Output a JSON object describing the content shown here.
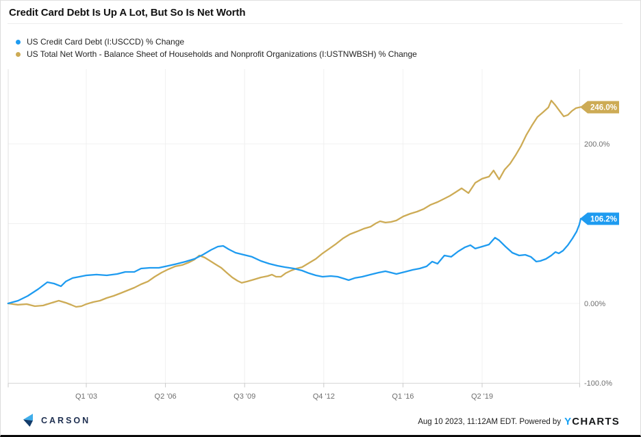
{
  "header": {
    "title": "Credit Card Debt Is Up A Lot, But So Is Net Worth"
  },
  "legend": [
    {
      "label": "US Credit Card Debt (I:USCCD) % Change",
      "color": "#1e9bf0"
    },
    {
      "label": "US Total Net Worth - Balance Sheet of Households and Nonprofit Organizations (I:USTNWBSH) % Change",
      "color": "#cdab55"
    }
  ],
  "footer": {
    "brand": "CARSON",
    "timestamp": "Aug 10 2023, 11:12AM EDT.",
    "powered_by": "Powered by",
    "ycharts_y": "Y",
    "ycharts_rest": "CHARTS"
  },
  "chart_data": {
    "type": "line",
    "title": "Credit Card Debt Is Up A Lot, But So Is Net Worth",
    "grid": true,
    "legend_position": "top-left",
    "x_axis": {
      "tick_labels": [
        "Q1 '03",
        "Q2 '06",
        "Q3 '09",
        "Q4 '12",
        "Q1 '16",
        "Q2 '19"
      ],
      "tick_years": [
        2003.0,
        2006.25,
        2009.5,
        2012.75,
        2016.0,
        2019.25
      ],
      "range_years": [
        1999.79,
        2023.3
      ]
    },
    "y_axis": {
      "unit": "%",
      "tick_labels": [
        "200.0%",
        "0.00%",
        "-100.0%"
      ],
      "tick_values": [
        200,
        0,
        -100
      ],
      "range": [
        -100,
        293
      ]
    },
    "series": [
      {
        "name": "US Credit Card Debt (I:USCCD) % Change",
        "color": "#1e9bf0",
        "end_label": "106.2%",
        "end_value": 106.2,
        "points": [
          [
            1999.79,
            0
          ],
          [
            2000.2,
            3.4
          ],
          [
            2000.6,
            9.4
          ],
          [
            2001.03,
            18
          ],
          [
            2001.4,
            26.6
          ],
          [
            2001.68,
            24.9
          ],
          [
            2001.96,
            21.5
          ],
          [
            2002.16,
            27.5
          ],
          [
            2002.44,
            31.8
          ],
          [
            2002.72,
            33.5
          ],
          [
            2003,
            35.2
          ],
          [
            2003.42,
            36.1
          ],
          [
            2003.84,
            35.2
          ],
          [
            2004.27,
            36.9
          ],
          [
            2004.6,
            39.5
          ],
          [
            2004.97,
            39.5
          ],
          [
            2005.25,
            43.8
          ],
          [
            2005.61,
            44.6
          ],
          [
            2005.98,
            44.6
          ],
          [
            2006.37,
            47.2
          ],
          [
            2006.74,
            49.8
          ],
          [
            2007.08,
            52.4
          ],
          [
            2007.44,
            55.8
          ],
          [
            2007.78,
            60.9
          ],
          [
            2008.12,
            67
          ],
          [
            2008.4,
            71.2
          ],
          [
            2008.62,
            72.1
          ],
          [
            2008.85,
            67.8
          ],
          [
            2009.13,
            63.5
          ],
          [
            2009.47,
            60.9
          ],
          [
            2009.8,
            58.4
          ],
          [
            2010.17,
            53.2
          ],
          [
            2010.51,
            49.8
          ],
          [
            2010.85,
            47.2
          ],
          [
            2011.15,
            45.5
          ],
          [
            2011.52,
            43.8
          ],
          [
            2011.86,
            41.2
          ],
          [
            2012.14,
            37.8
          ],
          [
            2012.42,
            35.2
          ],
          [
            2012.7,
            33.5
          ],
          [
            2013.04,
            34.3
          ],
          [
            2013.32,
            33.5
          ],
          [
            2013.6,
            30.9
          ],
          [
            2013.77,
            29.2
          ],
          [
            2014.02,
            31.8
          ],
          [
            2014.33,
            33.5
          ],
          [
            2014.67,
            36.1
          ],
          [
            2015,
            38.6
          ],
          [
            2015.28,
            40.3
          ],
          [
            2015.51,
            38.6
          ],
          [
            2015.73,
            36.9
          ],
          [
            2016.07,
            39.5
          ],
          [
            2016.41,
            42.1
          ],
          [
            2016.69,
            43.8
          ],
          [
            2016.97,
            46.4
          ],
          [
            2017.2,
            52.4
          ],
          [
            2017.42,
            49.8
          ],
          [
            2017.7,
            60.1
          ],
          [
            2017.98,
            58.4
          ],
          [
            2018.27,
            65.2
          ],
          [
            2018.55,
            70.4
          ],
          [
            2018.77,
            73
          ],
          [
            2018.97,
            68.7
          ],
          [
            2019.25,
            71.2
          ],
          [
            2019.53,
            73.8
          ],
          [
            2019.78,
            82.4
          ],
          [
            2019.95,
            79
          ],
          [
            2020.21,
            71.2
          ],
          [
            2020.49,
            63.5
          ],
          [
            2020.77,
            60.1
          ],
          [
            2021.02,
            60.9
          ],
          [
            2021.25,
            58.4
          ],
          [
            2021.47,
            52.4
          ],
          [
            2021.64,
            53.2
          ],
          [
            2021.87,
            55.8
          ],
          [
            2022.09,
            60.1
          ],
          [
            2022.26,
            64.4
          ],
          [
            2022.4,
            62.7
          ],
          [
            2022.57,
            66.1
          ],
          [
            2022.77,
            73
          ],
          [
            2022.96,
            81.5
          ],
          [
            2023.13,
            90.1
          ],
          [
            2023.24,
            98.7
          ],
          [
            2023.3,
            106.2
          ]
        ]
      },
      {
        "name": "US Total Net Worth - Balance Sheet of Households and Nonprofit Organizations (I:USTNWBSH) % Change",
        "color": "#cdab55",
        "end_label": "246.0%",
        "end_value": 246.0,
        "points": [
          [
            1999.79,
            0
          ],
          [
            2000.19,
            -1.7
          ],
          [
            2000.55,
            -0.9
          ],
          [
            2000.89,
            -3.4
          ],
          [
            2001.23,
            -2.6
          ],
          [
            2001.59,
            0.9
          ],
          [
            2001.87,
            3.4
          ],
          [
            2002.16,
            0.9
          ],
          [
            2002.38,
            -1.7
          ],
          [
            2002.58,
            -4.3
          ],
          [
            2002.8,
            -3.4
          ],
          [
            2003,
            -0.9
          ],
          [
            2003.28,
            1.7
          ],
          [
            2003.56,
            3.4
          ],
          [
            2003.84,
            6.9
          ],
          [
            2004.12,
            9.4
          ],
          [
            2004.41,
            12.9
          ],
          [
            2004.69,
            16.3
          ],
          [
            2004.97,
            19.7
          ],
          [
            2005.25,
            24
          ],
          [
            2005.53,
            27.5
          ],
          [
            2005.81,
            33.5
          ],
          [
            2006.09,
            38.6
          ],
          [
            2006.37,
            42.9
          ],
          [
            2006.65,
            46.4
          ],
          [
            2006.94,
            48.1
          ],
          [
            2007.22,
            51.5
          ],
          [
            2007.44,
            54.9
          ],
          [
            2007.64,
            60.1
          ],
          [
            2007.86,
            57.5
          ],
          [
            2008.09,
            53.2
          ],
          [
            2008.31,
            48.9
          ],
          [
            2008.54,
            44.6
          ],
          [
            2008.76,
            38.6
          ],
          [
            2008.99,
            32.6
          ],
          [
            2009.21,
            28.3
          ],
          [
            2009.38,
            25.8
          ],
          [
            2009.61,
            27.5
          ],
          [
            2009.89,
            30
          ],
          [
            2010.17,
            32.6
          ],
          [
            2010.45,
            34.3
          ],
          [
            2010.62,
            36.1
          ],
          [
            2010.79,
            33.5
          ],
          [
            2010.99,
            33.5
          ],
          [
            2011.18,
            37.8
          ],
          [
            2011.41,
            41.2
          ],
          [
            2011.63,
            43.8
          ],
          [
            2011.86,
            45.5
          ],
          [
            2012.14,
            50.6
          ],
          [
            2012.42,
            55.8
          ],
          [
            2012.7,
            62.7
          ],
          [
            2012.98,
            68.7
          ],
          [
            2013.26,
            74.7
          ],
          [
            2013.54,
            81.5
          ],
          [
            2013.82,
            86.7
          ],
          [
            2014.11,
            90.1
          ],
          [
            2014.39,
            93.6
          ],
          [
            2014.67,
            96.1
          ],
          [
            2014.89,
            100.4
          ],
          [
            2015.06,
            103
          ],
          [
            2015.28,
            101.3
          ],
          [
            2015.51,
            102.1
          ],
          [
            2015.73,
            103.9
          ],
          [
            2016.01,
            109
          ],
          [
            2016.3,
            112.4
          ],
          [
            2016.58,
            115
          ],
          [
            2016.86,
            118.5
          ],
          [
            2017.14,
            123.6
          ],
          [
            2017.42,
            127
          ],
          [
            2017.7,
            131.3
          ],
          [
            2017.93,
            134.8
          ],
          [
            2018.15,
            139.1
          ],
          [
            2018.41,
            144.2
          ],
          [
            2018.69,
            138.2
          ],
          [
            2018.97,
            151.1
          ],
          [
            2019.25,
            156.2
          ],
          [
            2019.53,
            158.8
          ],
          [
            2019.72,
            166.5
          ],
          [
            2019.95,
            155.4
          ],
          [
            2020.17,
            167.4
          ],
          [
            2020.4,
            175.1
          ],
          [
            2020.62,
            185.4
          ],
          [
            2020.85,
            197.4
          ],
          [
            2021.07,
            211.2
          ],
          [
            2021.3,
            223.2
          ],
          [
            2021.52,
            233.5
          ],
          [
            2021.75,
            239.5
          ],
          [
            2021.97,
            245.5
          ],
          [
            2022.09,
            254.1
          ],
          [
            2022.26,
            248.1
          ],
          [
            2022.43,
            241.2
          ],
          [
            2022.6,
            234.3
          ],
          [
            2022.77,
            236.1
          ],
          [
            2022.94,
            241.2
          ],
          [
            2023.1,
            244.6
          ],
          [
            2023.3,
            246
          ]
        ]
      }
    ]
  }
}
